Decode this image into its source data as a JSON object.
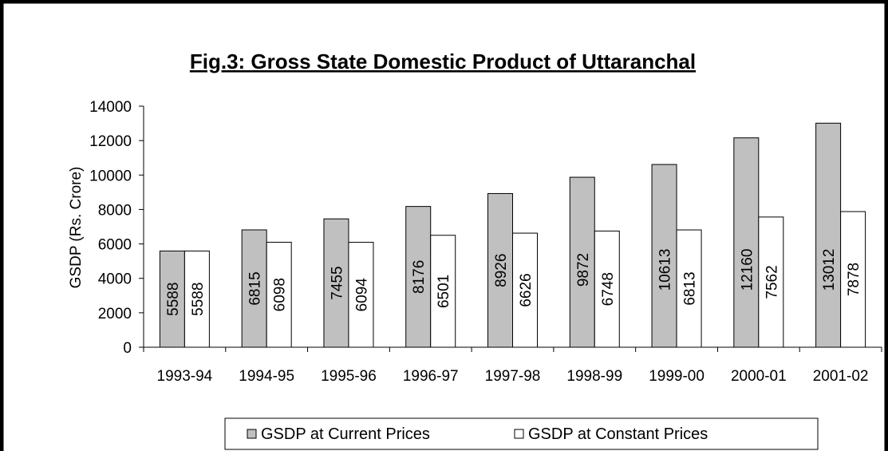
{
  "chart_data": {
    "type": "bar",
    "title": "Fig.3: Gross State Domestic Product of Uttaranchal",
    "y_label": "GSDP (Rs. Crore)",
    "categories": [
      "1993-94",
      "1994-95",
      "1995-96",
      "1996-97",
      "1997-98",
      "1998-99",
      "1999-00",
      "2000-01",
      "2001-02"
    ],
    "series": [
      {
        "name": "GSDP at Current Prices",
        "color": "#c0c0c0",
        "values": [
          5588,
          6815,
          7455,
          8176,
          8926,
          9872,
          10613,
          12160,
          13012
        ]
      },
      {
        "name": "GSDP at Constant Prices",
        "color": "#ffffff",
        "values": [
          5588,
          6098,
          6094,
          6501,
          6626,
          6748,
          6813,
          7562,
          7878
        ]
      }
    ],
    "ylim": [
      0,
      14000
    ],
    "yticks": [
      0,
      2000,
      4000,
      6000,
      8000,
      10000,
      12000,
      14000
    ],
    "grid": false,
    "legend": "bottom"
  }
}
